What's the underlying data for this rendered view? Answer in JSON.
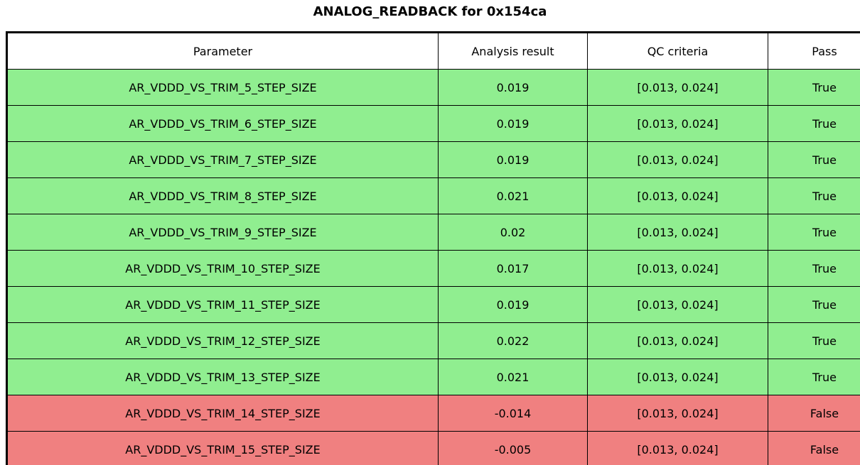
{
  "title": "ANALOG_READBACK for 0x154ca",
  "colors": {
    "pass_row": "#90ee90",
    "fail_row": "#f08080",
    "header_bg": "#ffffff",
    "border": "#000000",
    "text": "#000000"
  },
  "table": {
    "columns": [
      "Parameter",
      "Analysis result",
      "QC criteria",
      "Pass"
    ],
    "rows": [
      {
        "parameter": "AR_VDDD_VS_TRIM_5_STEP_SIZE",
        "result": "0.019",
        "criteria": "[0.013, 0.024]",
        "pass": "True"
      },
      {
        "parameter": "AR_VDDD_VS_TRIM_6_STEP_SIZE",
        "result": "0.019",
        "criteria": "[0.013, 0.024]",
        "pass": "True"
      },
      {
        "parameter": "AR_VDDD_VS_TRIM_7_STEP_SIZE",
        "result": "0.019",
        "criteria": "[0.013, 0.024]",
        "pass": "True"
      },
      {
        "parameter": "AR_VDDD_VS_TRIM_8_STEP_SIZE",
        "result": "0.021",
        "criteria": "[0.013, 0.024]",
        "pass": "True"
      },
      {
        "parameter": "AR_VDDD_VS_TRIM_9_STEP_SIZE",
        "result": "0.02",
        "criteria": "[0.013, 0.024]",
        "pass": "True"
      },
      {
        "parameter": "AR_VDDD_VS_TRIM_10_STEP_SIZE",
        "result": "0.017",
        "criteria": "[0.013, 0.024]",
        "pass": "True"
      },
      {
        "parameter": "AR_VDDD_VS_TRIM_11_STEP_SIZE",
        "result": "0.019",
        "criteria": "[0.013, 0.024]",
        "pass": "True"
      },
      {
        "parameter": "AR_VDDD_VS_TRIM_12_STEP_SIZE",
        "result": "0.022",
        "criteria": "[0.013, 0.024]",
        "pass": "True"
      },
      {
        "parameter": "AR_VDDD_VS_TRIM_13_STEP_SIZE",
        "result": "0.021",
        "criteria": "[0.013, 0.024]",
        "pass": "True"
      },
      {
        "parameter": "AR_VDDD_VS_TRIM_14_STEP_SIZE",
        "result": "-0.014",
        "criteria": "[0.013, 0.024]",
        "pass": "False"
      },
      {
        "parameter": "AR_VDDD_VS_TRIM_15_STEP_SIZE",
        "result": "-0.005",
        "criteria": "[0.013, 0.024]",
        "pass": "False"
      }
    ]
  }
}
